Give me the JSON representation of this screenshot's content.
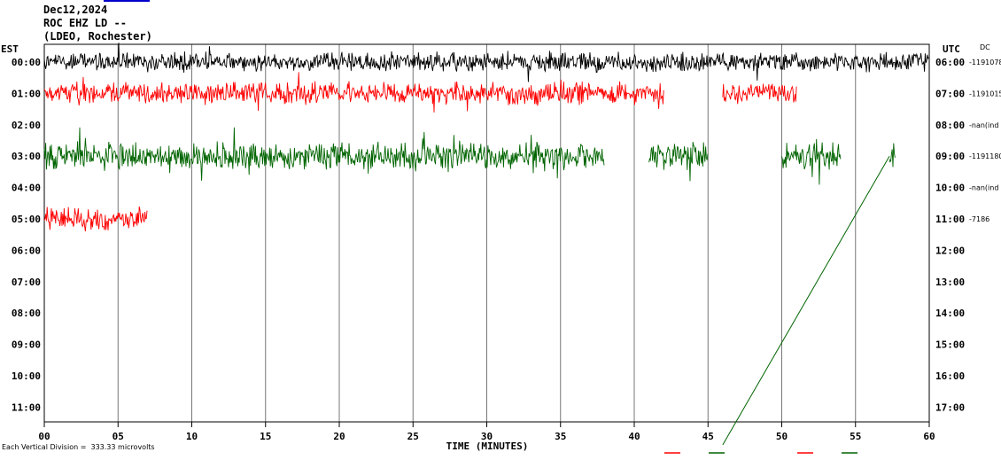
{
  "header": {
    "date": "Dec12,2024",
    "station": "ROC EHZ LD --",
    "network": "(LDEO, Rochester)"
  },
  "labels": {
    "left_axis": "EST",
    "right_axis": "UTC",
    "dc_label": "DC",
    "xaxis_title": "TIME (MINUTES)",
    "footnote": "Each Vertical Division =  333.33 microvolts"
  },
  "colors": {
    "black": "#000000",
    "red": "#ff0000",
    "green": "#006400",
    "grid": "#777777",
    "accent": "#0000cc"
  },
  "chart_data": {
    "type": "line",
    "title": "",
    "xlabel": "TIME (MINUTES)",
    "xlim": [
      0,
      60
    ],
    "x_ticks": [
      "00",
      "05",
      "10",
      "15",
      "20",
      "25",
      "30",
      "35",
      "40",
      "45",
      "50",
      "55",
      "60"
    ],
    "est_hours": [
      "00:00",
      "01:00",
      "02:00",
      "03:00",
      "04:00",
      "05:00",
      "06:00",
      "07:00",
      "08:00",
      "09:00",
      "10:00",
      "11:00"
    ],
    "utc_hours": [
      "06:00",
      "07:00",
      "08:00",
      "09:00",
      "10:00",
      "11:00",
      "12:00",
      "13:00",
      "14:00",
      "15:00",
      "16:00",
      "17:00"
    ],
    "dc_offsets": [
      "-1191078",
      "-1191015",
      "-nan(ind",
      "-1191180",
      "-nan(ind",
      "-7186",
      "",
      "",
      "",
      "",
      "",
      ""
    ],
    "traces": [
      {
        "row": 0,
        "color": "black",
        "segments": [
          [
            0,
            60
          ]
        ],
        "amplitude": 0.6
      },
      {
        "row": 1,
        "color": "red",
        "segments": [
          [
            0,
            42
          ],
          [
            46,
            51
          ]
        ],
        "amplitude": 0.7
      },
      {
        "row": 3,
        "color": "green",
        "segments": [
          [
            0,
            38
          ],
          [
            41,
            45
          ],
          [
            50,
            54
          ],
          [
            57.3,
            57.7
          ]
        ],
        "amplitude": 0.85
      },
      {
        "row": 5,
        "color": "red",
        "segments": [
          [
            0,
            7
          ]
        ],
        "amplitude": 0.75
      }
    ],
    "diagonal_line": {
      "color": "green",
      "from_minute": 46,
      "from_row": 12.2,
      "to_minute": 57.3,
      "to_row": 3
    },
    "legend_swatches": [
      "red",
      "green",
      "red",
      "green"
    ]
  }
}
